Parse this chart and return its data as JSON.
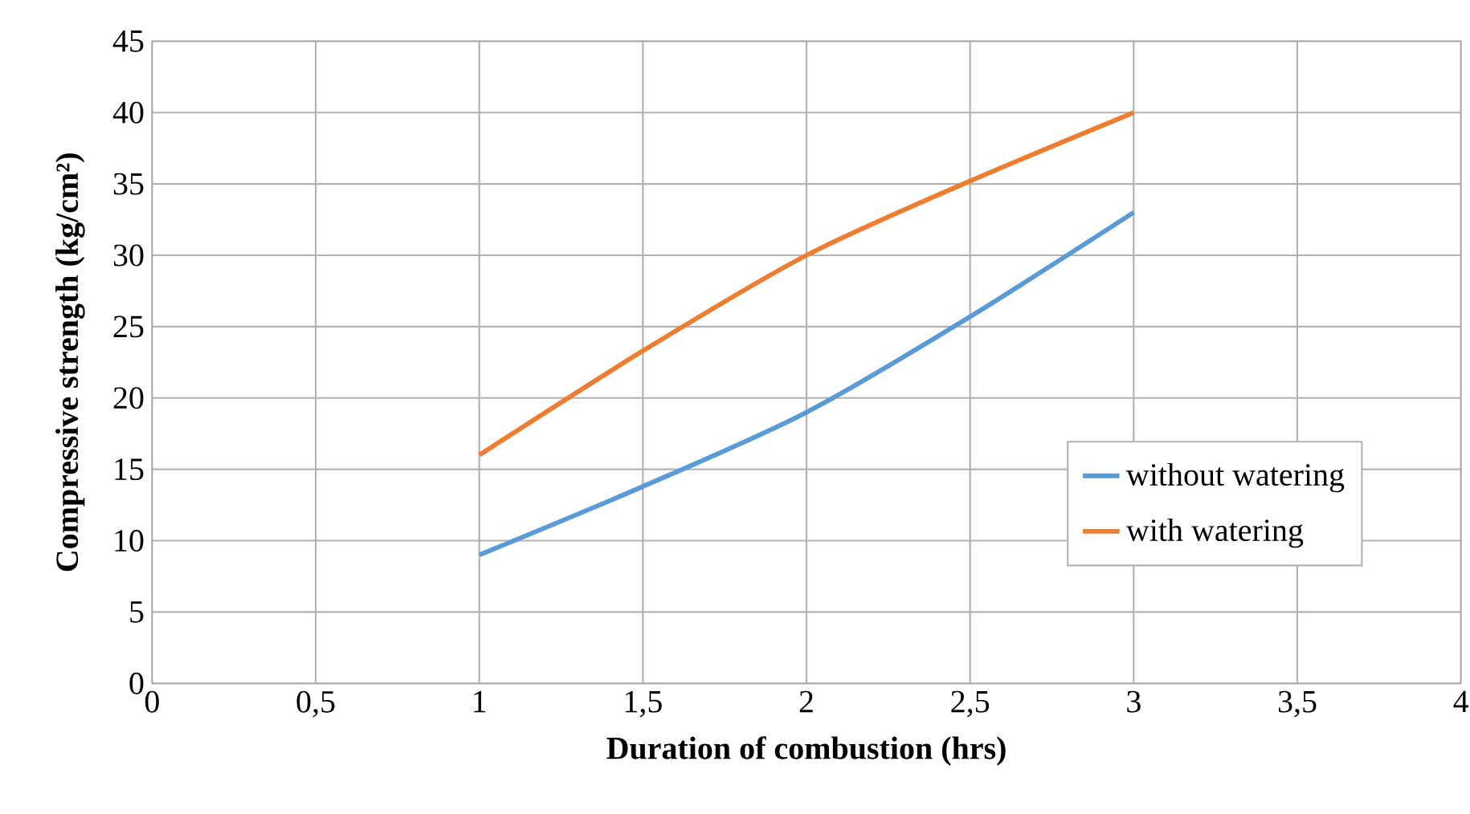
{
  "chart_data": {
    "type": "line",
    "xlabel": "Duration of combustion (hrs)",
    "ylabel": "Compressive strength (kg/cm²)",
    "xlim": [
      0,
      4
    ],
    "xticks": [
      0,
      {
        "value": 0.5,
        "label": "0,5"
      },
      1,
      {
        "value": 1.5,
        "label": "1,5"
      },
      2,
      {
        "value": 2.5,
        "label": "2,5"
      },
      3,
      {
        "value": 3.5,
        "label": "3,5"
      },
      4
    ],
    "ylim": [
      0,
      45
    ],
    "yticks": [
      0,
      5,
      10,
      15,
      20,
      25,
      30,
      35,
      40,
      45
    ],
    "grid": true,
    "legend": "right",
    "marker": "none",
    "line_style": "solid",
    "series": [
      {
        "name": "without watering",
        "color": "#5b9bd5",
        "x": [
          1,
          1.5,
          2,
          2.5,
          3
        ],
        "values": [
          9,
          13.8,
          19,
          25.7,
          33
        ]
      },
      {
        "name": "with watering",
        "color": "#ed7d31",
        "x": [
          1,
          1.5,
          2,
          2.5,
          3
        ],
        "values": [
          16,
          23.3,
          30,
          35.2,
          40
        ]
      }
    ]
  }
}
